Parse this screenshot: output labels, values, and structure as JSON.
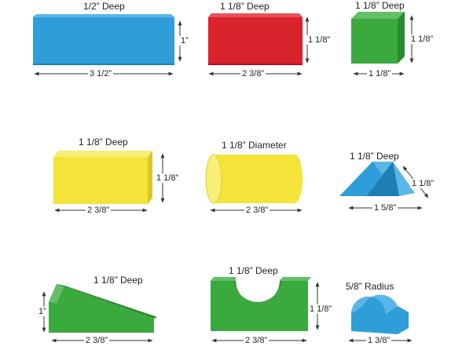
{
  "blocks": [
    {
      "id": "blue-rectangle",
      "depth": "1/2” Deep",
      "height": "1”",
      "width": "3 1/2”",
      "color": "#2f9ed8"
    },
    {
      "id": "red-rectangle",
      "depth": "1 1/8” Deep",
      "height": "1 1/8”",
      "width": "2 3/8”",
      "color": "#d9232c"
    },
    {
      "id": "green-cube",
      "depth": "1 1/8” Deep",
      "height": "1 1/8”",
      "width": "1 1/8”",
      "color": "#3aa93e"
    },
    {
      "id": "yellow-rectangle",
      "depth": "1 1/8” Deep",
      "height": "1 1/8”",
      "width": "2 3/8”",
      "color": "#f4e43a"
    },
    {
      "id": "yellow-cylinder",
      "depth": "1 1/8” Diameter",
      "width": "2 3/8”",
      "color": "#f4e43a"
    },
    {
      "id": "blue-triangle",
      "depth": "1 1/8” Deep",
      "height": "1 1/8”",
      "width": "1 5/8”",
      "color": "#2f9ed8"
    },
    {
      "id": "green-ramp",
      "depth": "1 1/8” Deep",
      "height": "1”",
      "width": "2 3/8”",
      "color": "#3aa93e"
    },
    {
      "id": "green-arch",
      "depth": "1 1/8” Deep",
      "height": "1 1/8”",
      "width": "2 3/8”",
      "color": "#3aa93e"
    },
    {
      "id": "blue-half-cylinder",
      "depth": "5/8” Radius",
      "width": "1 3/8”",
      "color": "#2f9ed8"
    }
  ]
}
